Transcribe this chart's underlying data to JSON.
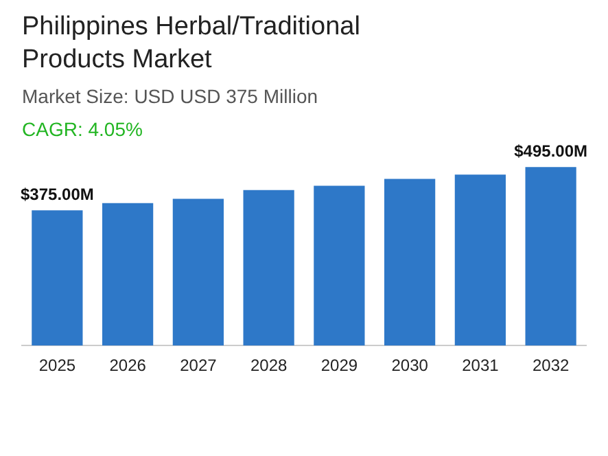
{
  "chart_data": {
    "type": "bar",
    "title": "Philippines Herbal/Traditional Products Market",
    "subtitle": "Market Size: USD USD 375 Million",
    "annotations": [
      "CAGR: 4.05%"
    ],
    "categories": [
      "2025",
      "2026",
      "2027",
      "2028",
      "2029",
      "2030",
      "2031",
      "2032"
    ],
    "values": [
      375,
      395,
      407,
      431,
      443,
      462,
      474,
      495
    ],
    "value_labels": [
      "$375.00M",
      null,
      null,
      null,
      null,
      null,
      null,
      "$495.00M"
    ],
    "color": "#2e78c8",
    "grid": false,
    "legend": false
  }
}
